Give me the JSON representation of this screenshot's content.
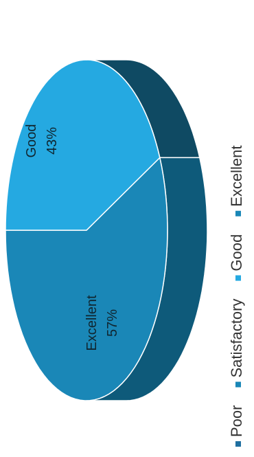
{
  "chart_data": {
    "type": "pie",
    "title": "",
    "slices": [
      {
        "label": "Excellent",
        "percent_label": "57%",
        "value": 57,
        "color": "#1a87b7",
        "side_color": "#0e5a7a"
      },
      {
        "label": "Good",
        "percent_label": "43%",
        "value": 43,
        "color": "#25a9e1",
        "side_color": "#0f4a63"
      }
    ],
    "legend": {
      "placement": "right",
      "entries": [
        {
          "label": "Poor",
          "color": "#1f6fa0"
        },
        {
          "label": "Satisfactory",
          "color": "#1a87b7"
        },
        {
          "label": "Good",
          "color": "#25a9e1"
        },
        {
          "label": "Excellent",
          "color": "#1a87b7"
        }
      ]
    },
    "style": {
      "three_d": true,
      "rotated": "90deg-clockwise"
    }
  }
}
